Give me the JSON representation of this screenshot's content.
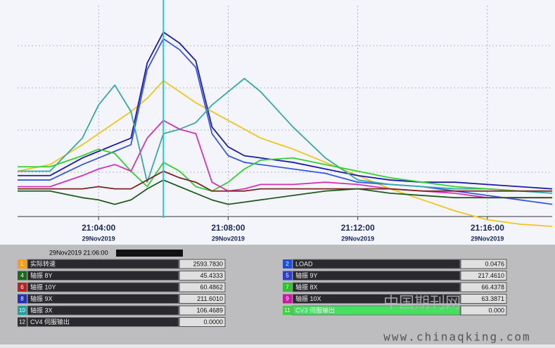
{
  "chart_data": {
    "type": "line",
    "x": [
      1261.5,
      1262.5,
      1263.5,
      1264,
      1264.5,
      1265,
      1265.5,
      1266,
      1266.5,
      1267,
      1267.5,
      1268,
      1268.5,
      1269,
      1270,
      1271,
      1272,
      1273,
      1274,
      1275,
      1276,
      1277,
      1278
    ],
    "xlim": [
      1261.5,
      1278
    ],
    "xticks": [
      {
        "value": 1264,
        "label": "21:04:00"
      },
      {
        "value": 1268,
        "label": "21:08:00"
      },
      {
        "value": 1272,
        "label": "21:12:00"
      },
      {
        "value": 1276,
        "label": "21:16:00"
      }
    ],
    "xtick_sublabels": [
      "29Nov2019",
      "29Nov2019",
      "29Nov2019",
      "29Nov2019"
    ],
    "ylim": [
      0,
      100
    ],
    "grid": true,
    "cursor_x": 1266,
    "series": [
      {
        "color": "#f2c61f",
        "values": [
          25,
          28,
          37,
          42,
          47,
          52,
          58,
          66,
          61,
          56,
          52,
          48,
          44,
          40,
          35,
          29,
          23,
          17,
          12,
          7,
          3,
          1,
          0
        ]
      },
      {
        "color": "#1c1ca8",
        "values": [
          23,
          23,
          31,
          34,
          37,
          40,
          74,
          88,
          83,
          75,
          45,
          36,
          32,
          31,
          29,
          26,
          23,
          21,
          20,
          20,
          19,
          18,
          17
        ]
      },
      {
        "color": "#3a56e6",
        "values": [
          21,
          21,
          28,
          31,
          34,
          37,
          71,
          85,
          80,
          72,
          42,
          32,
          29,
          28,
          26,
          24,
          20,
          19,
          18,
          16,
          14,
          12,
          10
        ]
      },
      {
        "color": "#35aaa2",
        "values": [
          25,
          25,
          40,
          55,
          64,
          52,
          20,
          42,
          44,
          47,
          55,
          61,
          67,
          61,
          45,
          31,
          21,
          19,
          18,
          17,
          17,
          16,
          15
        ]
      },
      {
        "color": "#33d033",
        "values": [
          27,
          27,
          32,
          35,
          33,
          25,
          18,
          29,
          25,
          18,
          16,
          20,
          26,
          30,
          31,
          28,
          25,
          22,
          20,
          18,
          17,
          16,
          16
        ]
      },
      {
        "color": "#d633b4",
        "values": [
          18,
          18,
          23,
          26,
          28,
          25,
          40,
          48,
          44,
          42,
          20,
          16,
          17,
          19,
          19,
          20,
          19,
          17,
          16,
          15,
          13,
          13,
          13
        ]
      },
      {
        "color": "#7e2222",
        "values": [
          17,
          17,
          17,
          18,
          17,
          17,
          21,
          25,
          22,
          20,
          16,
          16,
          16,
          17,
          17,
          17,
          17,
          17,
          16,
          16,
          16,
          16,
          16
        ]
      },
      {
        "color": "#1f5e1f",
        "values": [
          16,
          16,
          13,
          12,
          10,
          12,
          17,
          21,
          18,
          15,
          12,
          10,
          11,
          12,
          14,
          16,
          17,
          15,
          14,
          13,
          13,
          13,
          13
        ]
      }
    ]
  },
  "readout": {
    "timestamp": "29Nov2019 21:06:00",
    "left": [
      {
        "id": "1",
        "name": "实际转速",
        "value": "2593.7830",
        "color": "#f0a020"
      },
      {
        "id": "4",
        "name": "轴振 8Y",
        "value": "45.4333",
        "color": "#1a6a1a"
      },
      {
        "id": "6",
        "name": "轴振 10Y",
        "value": "60.4862",
        "color": "#c02020"
      },
      {
        "id": "8",
        "name": "轴振 9X",
        "value": "211.6010",
        "color": "#2030c0"
      },
      {
        "id": "10",
        "name": "轴振 3X",
        "value": "106.4689",
        "color": "#20a0a0"
      },
      {
        "id": "12",
        "name": "CV4 伺服输出",
        "value": "0.0000",
        "color": "#303030"
      }
    ],
    "right": [
      {
        "id": "2",
        "name": "LOAD",
        "value": "0.0476",
        "color": "#2050d0"
      },
      {
        "id": "5",
        "name": "轴振 9Y",
        "value": "217.4610",
        "color": "#3040c0"
      },
      {
        "id": "7",
        "name": "轴振 8X",
        "value": "66.4378",
        "color": "#30c030"
      },
      {
        "id": "9",
        "name": "轴振 10X",
        "value": "63.3871",
        "color": "#c020a0"
      },
      {
        "id": "11",
        "name": "CV3 伺服输出",
        "value": "0.000",
        "color": "#40d040"
      }
    ]
  },
  "watermark": {
    "title": "中国期刊网",
    "url": "www.chinaqking.com"
  }
}
